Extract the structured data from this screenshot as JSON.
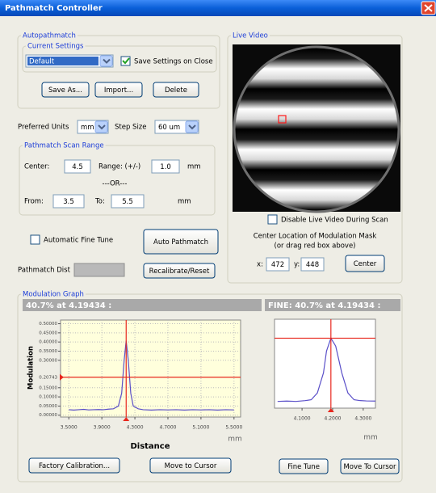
{
  "window": {
    "title": "Pathmatch Controller"
  },
  "autopathmatch": {
    "label": "Autopathmatch",
    "current_settings": "Current Settings",
    "setting": "Default",
    "save_on_close": {
      "label": "Save Settings on Close",
      "checked": true
    },
    "buttons": [
      "Save As...",
      "Import...",
      "Delete"
    ]
  },
  "units": {
    "label": "Preferred Units",
    "value": "mm",
    "step_label": "Step Size",
    "step_value": "60 um"
  },
  "scan_range": {
    "label": "Pathmatch Scan Range",
    "center_label": "Center:",
    "center": "4.5",
    "range_label": "Range: (+/-)",
    "range": "1.0",
    "range_unit": "mm",
    "or": "---OR---",
    "from_label": "From:",
    "from": "3.5",
    "to_label": "To:",
    "to": "5.5",
    "to_unit": "mm"
  },
  "fine_tune": {
    "label": "Automatic Fine Tune",
    "checked": false,
    "button": "Auto Pathmatch"
  },
  "dist": {
    "label": "Pathmatch Dist",
    "button": "Recalibrate/Reset"
  },
  "live_video": {
    "label": "Live Video",
    "disable": {
      "label": "Disable Live Video During Scan",
      "checked": false
    },
    "mask_title": "Center Location of Modulation Mask",
    "mask_hint": "(or drag red box above)",
    "x_label": "x:",
    "x": "472",
    "y_label": "y:",
    "y": "448",
    "button": "Center"
  },
  "modulation_graph": {
    "label": "Modulation Graph",
    "readout": "40.7% at 4.19434 :",
    "fine_readout": "FINE: 40.7% at 4.19434 :",
    "main": {
      "type": "line",
      "color": "#5a4fc8",
      "background": "#ffffdc",
      "grid": true,
      "xlabel": "Distance",
      "ylabel": "Modulation",
      "unit": "mm",
      "x": [
        3.5,
        3.56,
        3.62,
        3.68,
        3.74,
        3.8,
        3.86,
        3.92,
        3.98,
        4.04,
        4.1,
        4.14,
        4.17,
        4.19434,
        4.22,
        4.25,
        4.28,
        4.34,
        4.4,
        4.5,
        4.6,
        4.7,
        4.8,
        4.9,
        5.0,
        5.1,
        5.2,
        5.3,
        5.4,
        5.5
      ],
      "values": [
        0.03,
        0.028,
        0.03,
        0.032,
        0.029,
        0.03,
        0.031,
        0.03,
        0.033,
        0.035,
        0.05,
        0.12,
        0.3,
        0.407,
        0.3,
        0.12,
        0.05,
        0.035,
        0.03,
        0.028,
        0.03,
        0.029,
        0.03,
        0.028,
        0.03,
        0.029,
        0.03,
        0.028,
        0.03,
        0.029
      ],
      "xlim": [
        3.4,
        5.58
      ],
      "ylim": [
        -0.01,
        0.52
      ],
      "xticks": [
        {
          "value": 3.5,
          "label": "3.5000"
        },
        {
          "value": 3.9,
          "label": "3.9000"
        },
        {
          "value": 4.3,
          "label": "4.3000"
        },
        {
          "value": 4.7,
          "label": "4.7000"
        },
        {
          "value": 5.1,
          "label": "5.1000"
        },
        {
          "value": 5.5,
          "label": "5.5000"
        }
      ],
      "yticks": [
        {
          "value": 0.5,
          "label": "0.50000"
        },
        {
          "value": 0.45,
          "label": "0.45000"
        },
        {
          "value": 0.4,
          "label": "0.40000"
        },
        {
          "value": 0.35,
          "label": "0.35000"
        },
        {
          "value": 0.3,
          "label": "0.30000"
        },
        {
          "value": 0.15,
          "label": "0.15000"
        },
        {
          "value": 0.1,
          "label": "0.10000"
        },
        {
          "value": 0.05,
          "label": "0.05000"
        },
        {
          "value": 0,
          "label": "0.00000"
        }
      ],
      "cursor": {
        "x": 4.19434,
        "y": {
          "value": 0.20743,
          "label": "0.20743"
        },
        "color": "#e8281e"
      }
    },
    "fine": {
      "type": "line",
      "color": "#5a4fc8",
      "background": "#ffffff",
      "grid": false,
      "unit": "mm",
      "x": [
        4.02,
        4.05,
        4.08,
        4.11,
        4.13,
        4.15,
        4.17,
        4.18,
        4.19434,
        4.21,
        4.23,
        4.25,
        4.27,
        4.29,
        4.31,
        4.34
      ],
      "values": [
        0.03,
        0.032,
        0.03,
        0.035,
        0.04,
        0.08,
        0.2,
        0.33,
        0.407,
        0.36,
        0.2,
        0.08,
        0.04,
        0.035,
        0.033,
        0.032
      ],
      "xlim": [
        4.01,
        4.34
      ],
      "ylim": [
        -0.01,
        0.52
      ],
      "xticks": [
        {
          "value": 4.1,
          "label": "4.1000"
        },
        {
          "value": 4.2,
          "label": "4.2000"
        },
        {
          "value": 4.3,
          "label": "4.3000"
        }
      ],
      "cursor": {
        "x": 4.19434,
        "y": 0.407,
        "color": "#e8281e"
      }
    },
    "buttons": [
      "Factory Calibration...",
      "Move to Cursor",
      "Fine Tune",
      "Move To Cursor"
    ]
  }
}
